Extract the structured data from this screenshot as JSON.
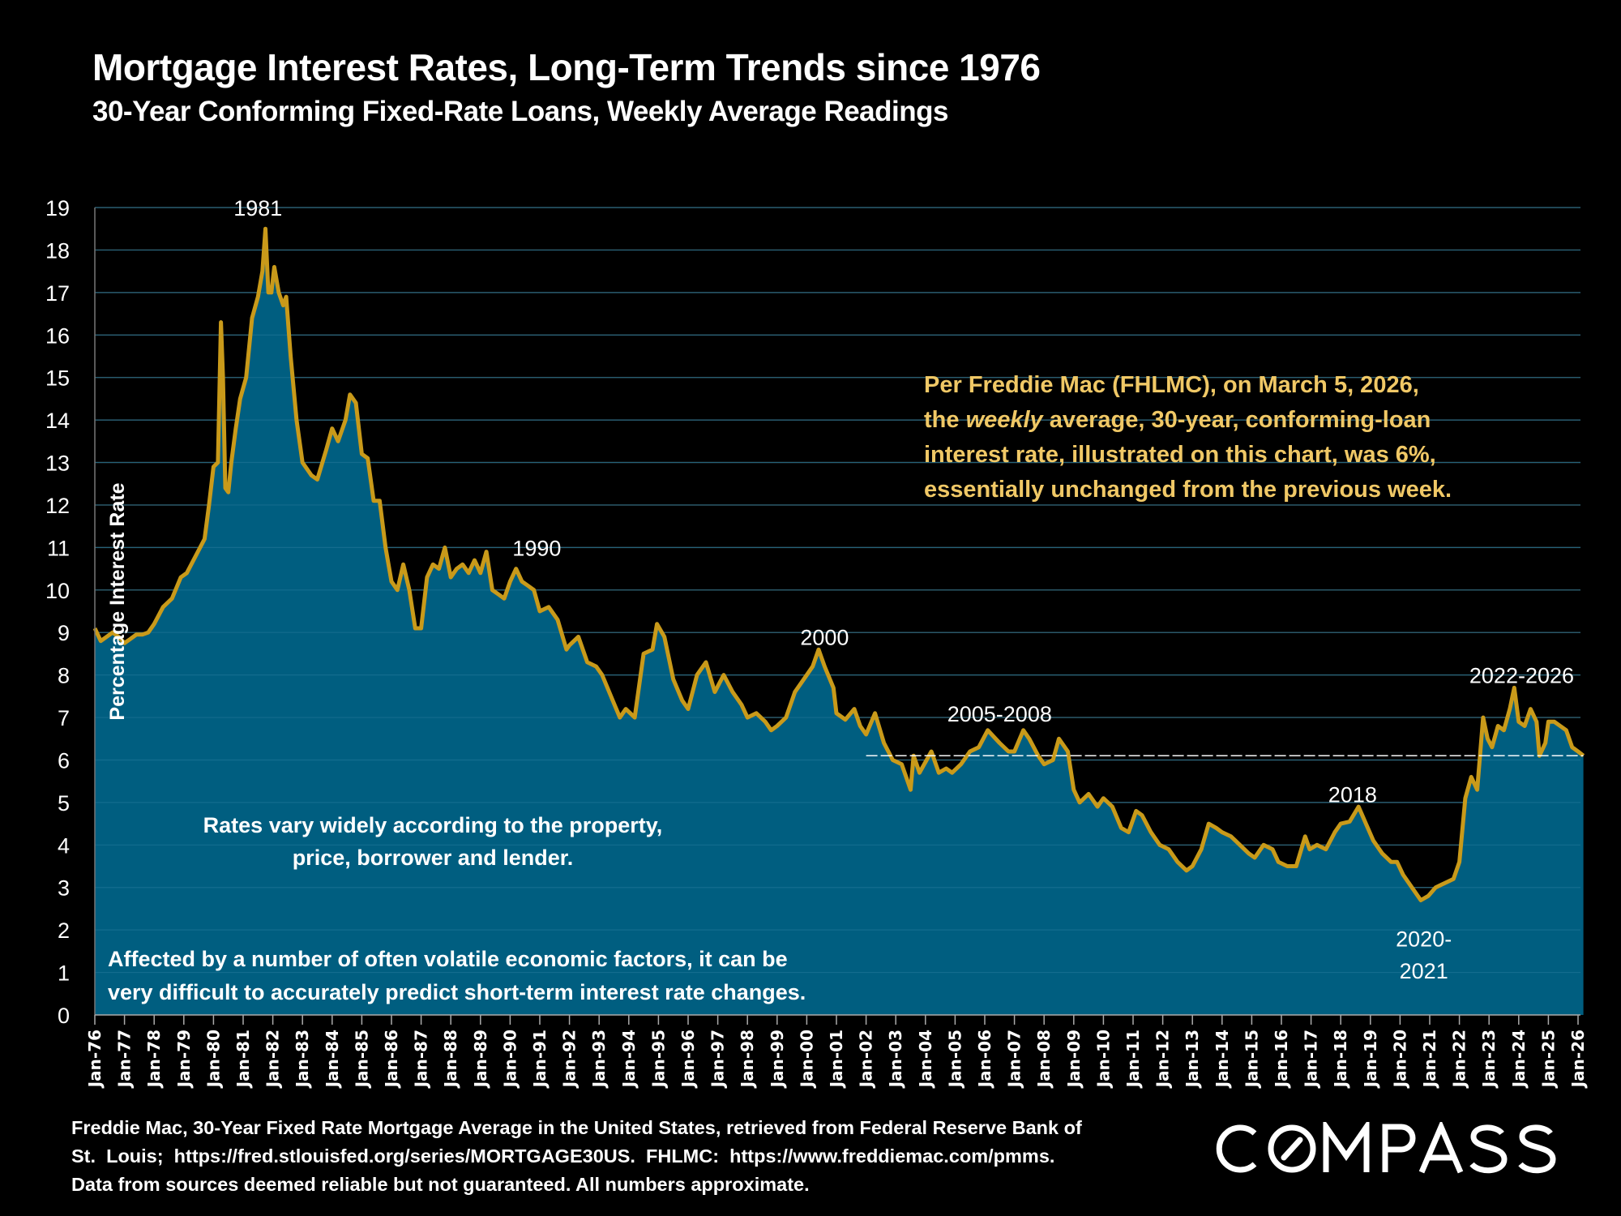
{
  "header": {
    "title": "Mortgage Interest Rates, Long-Term Trends since 1976",
    "subtitle": "30-Year Conforming Fixed-Rate Loans, Weekly Average Readings"
  },
  "callout": {
    "line1": "Per Freddie Mac (FHLMC), on March 5, 2026,",
    "line2_pre": "the ",
    "line2_em": "weekly",
    "line2_post": " average, 30-year, conforming-loan",
    "line3": "interest rate, illustrated on this chart, was 6%,",
    "line4": "essentially unchanged from the previous week."
  },
  "footnote": {
    "line1": "Freddie Mac, 30-Year Fixed Rate Mortgage Average in the United States, retrieved from Federal Reserve Bank of",
    "line2": "St.  Louis;  https://fred.stlouisfed.org/series/MORTGAGE30US.  FHLMC:  https://www.freddiemac.com/pmms.",
    "line3": "Data from sources deemed reliable but not guaranteed. All numbers approximate."
  },
  "logo": {
    "text": "COMPASS"
  },
  "colors": {
    "background": "#000000",
    "fill": "#005e80",
    "line": "#c99a1a",
    "callout_text": "#f0c866",
    "grid": "#3a3a3a",
    "reference_line": "#ffffff"
  },
  "chart_data": {
    "type": "area",
    "title": "Mortgage Interest Rates, Long-Term Trends since 1976",
    "subtitle": "30-Year Conforming Fixed-Rate Loans, Weekly Average Readings",
    "xlabel": "",
    "ylabel": "Percentage Interest  Rate",
    "ylim": [
      0,
      19
    ],
    "xlim": [
      1976,
      2026.2
    ],
    "yticks": [
      "0",
      "1",
      "2",
      "3",
      "4",
      "5",
      "6",
      "7",
      "8",
      "9",
      "10",
      "11",
      "12",
      "13",
      "14",
      "15",
      "16",
      "17",
      "18",
      "19"
    ],
    "xticks": [
      "Jan-76",
      "Jan-77",
      "Jan-78",
      "Jan-79",
      "Jan-80",
      "Jan-81",
      "Jan-82",
      "Jan-83",
      "Jan-84",
      "Jan-85",
      "Jan-86",
      "Jan-87",
      "Jan-88",
      "Jan-89",
      "Jan-90",
      "Jan-91",
      "Jan-92",
      "Jan-93",
      "Jan-94",
      "Jan-95",
      "Jan-96",
      "Jan-97",
      "Jan-98",
      "Jan-99",
      "Jan-00",
      "Jan-01",
      "Jan-02",
      "Jan-03",
      "Jan-04",
      "Jan-05",
      "Jan-06",
      "Jan-07",
      "Jan-08",
      "Jan-09",
      "Jan-10",
      "Jan-11",
      "Jan-12",
      "Jan-13",
      "Jan-14",
      "Jan-15",
      "Jan-16",
      "Jan-17",
      "Jan-18",
      "Jan-19",
      "Jan-20",
      "Jan-21",
      "Jan-22",
      "Jan-23",
      "Jan-24",
      "Jan-25",
      "Jan-26"
    ],
    "grid": true,
    "legend": "none",
    "series": [
      {
        "name": "30-Year Fixed Rate Mortgage Average (weekly)",
        "x": [
          1976.0,
          1976.2,
          1976.4,
          1976.6,
          1976.8,
          1977.0,
          1977.2,
          1977.4,
          1977.6,
          1977.8,
          1978.0,
          1978.3,
          1978.6,
          1978.9,
          1979.1,
          1979.4,
          1979.7,
          1979.85,
          1980.0,
          1980.15,
          1980.25,
          1980.32,
          1980.4,
          1980.5,
          1980.6,
          1980.75,
          1980.9,
          1981.1,
          1981.3,
          1981.5,
          1981.65,
          1981.75,
          1981.85,
          1981.95,
          1982.05,
          1982.2,
          1982.35,
          1982.45,
          1982.6,
          1982.8,
          1983.0,
          1983.3,
          1983.5,
          1983.8,
          1984.0,
          1984.2,
          1984.45,
          1984.6,
          1984.8,
          1985.0,
          1985.2,
          1985.4,
          1985.6,
          1985.8,
          1986.0,
          1986.2,
          1986.4,
          1986.6,
          1986.8,
          1987.0,
          1987.2,
          1987.4,
          1987.6,
          1987.8,
          1988.0,
          1988.2,
          1988.4,
          1988.6,
          1988.8,
          1989.0,
          1989.2,
          1989.4,
          1989.6,
          1989.8,
          1990.0,
          1990.2,
          1990.4,
          1990.6,
          1990.8,
          1991.0,
          1991.3,
          1991.6,
          1991.9,
          1992.0,
          1992.3,
          1992.6,
          1992.9,
          1993.1,
          1993.4,
          1993.7,
          1993.9,
          1994.2,
          1994.5,
          1994.8,
          1994.95,
          1995.2,
          1995.5,
          1995.8,
          1996.0,
          1996.3,
          1996.6,
          1996.9,
          1997.2,
          1997.5,
          1997.8,
          1998.0,
          1998.3,
          1998.6,
          1998.8,
          1999.0,
          1999.3,
          1999.6,
          1999.9,
          2000.2,
          2000.4,
          2000.6,
          2000.9,
          2001.0,
          2001.3,
          2001.6,
          2001.8,
          2002.0,
          2002.3,
          2002.6,
          2002.9,
          2003.2,
          2003.5,
          2003.6,
          2003.8,
          2004.2,
          2004.45,
          2004.7,
          2004.9,
          2005.2,
          2005.5,
          2005.8,
          2006.1,
          2006.5,
          2006.8,
          2007.0,
          2007.3,
          2007.5,
          2007.8,
          2008.0,
          2008.3,
          2008.5,
          2008.8,
          2009.0,
          2009.2,
          2009.5,
          2009.8,
          2010.0,
          2010.3,
          2010.6,
          2010.85,
          2011.1,
          2011.3,
          2011.6,
          2011.9,
          2012.2,
          2012.5,
          2012.8,
          2013.0,
          2013.3,
          2013.55,
          2013.8,
          2014.0,
          2014.3,
          2014.6,
          2014.9,
          2015.1,
          2015.4,
          2015.7,
          2015.9,
          2016.2,
          2016.5,
          2016.8,
          2016.95,
          2017.2,
          2017.5,
          2017.8,
          2018.0,
          2018.3,
          2018.6,
          2018.85,
          2019.1,
          2019.4,
          2019.7,
          2019.9,
          2020.1,
          2020.4,
          2020.7,
          2020.95,
          2021.2,
          2021.5,
          2021.8,
          2022.0,
          2022.2,
          2022.4,
          2022.6,
          2022.8,
          2022.95,
          2023.1,
          2023.3,
          2023.5,
          2023.7,
          2023.85,
          2024.0,
          2024.2,
          2024.4,
          2024.6,
          2024.7,
          2024.9,
          2025.0,
          2025.2,
          2025.4,
          2025.6,
          2025.8,
          2026.0,
          2026.18
        ],
        "y": [
          9.1,
          8.8,
          8.9,
          9.0,
          8.9,
          8.75,
          8.85,
          8.95,
          8.95,
          9.0,
          9.2,
          9.6,
          9.8,
          10.3,
          10.4,
          10.8,
          11.2,
          12.0,
          12.9,
          13.0,
          16.3,
          15.0,
          12.4,
          12.3,
          13.0,
          13.8,
          14.5,
          15.0,
          16.4,
          16.9,
          17.5,
          18.5,
          17.0,
          17.0,
          17.6,
          17.0,
          16.7,
          16.9,
          15.5,
          14.0,
          13.0,
          12.7,
          12.6,
          13.3,
          13.8,
          13.5,
          14.0,
          14.6,
          14.4,
          13.2,
          13.1,
          12.1,
          12.1,
          11.0,
          10.2,
          10.0,
          10.6,
          10.0,
          9.1,
          9.1,
          10.3,
          10.6,
          10.5,
          11.0,
          10.3,
          10.5,
          10.6,
          10.4,
          10.7,
          10.4,
          10.9,
          10.0,
          9.9,
          9.8,
          10.2,
          10.5,
          10.2,
          10.1,
          10.0,
          9.5,
          9.6,
          9.3,
          8.6,
          8.7,
          8.9,
          8.3,
          8.2,
          8.0,
          7.5,
          7.0,
          7.2,
          7.0,
          8.5,
          8.6,
          9.2,
          8.9,
          7.9,
          7.4,
          7.2,
          8.0,
          8.3,
          7.6,
          8.0,
          7.6,
          7.3,
          7.0,
          7.1,
          6.9,
          6.7,
          6.8,
          7.0,
          7.6,
          7.9,
          8.2,
          8.6,
          8.2,
          7.7,
          7.1,
          6.95,
          7.2,
          6.8,
          6.6,
          7.1,
          6.4,
          6.0,
          5.9,
          5.3,
          6.1,
          5.7,
          6.2,
          5.7,
          5.8,
          5.7,
          5.9,
          6.2,
          6.3,
          6.7,
          6.4,
          6.2,
          6.2,
          6.7,
          6.5,
          6.1,
          5.9,
          6.0,
          6.5,
          6.2,
          5.3,
          5.0,
          5.2,
          4.9,
          5.1,
          4.9,
          4.4,
          4.3,
          4.8,
          4.7,
          4.3,
          4.0,
          3.9,
          3.6,
          3.4,
          3.5,
          3.9,
          4.5,
          4.4,
          4.3,
          4.2,
          4.0,
          3.8,
          3.7,
          4.0,
          3.9,
          3.6,
          3.5,
          3.5,
          4.2,
          3.9,
          4.0,
          3.9,
          4.3,
          4.5,
          4.55,
          4.9,
          4.5,
          4.1,
          3.8,
          3.6,
          3.6,
          3.3,
          3.0,
          2.7,
          2.8,
          3.0,
          3.1,
          3.2,
          3.6,
          5.1,
          5.6,
          5.3,
          7.0,
          6.5,
          6.3,
          6.8,
          6.7,
          7.2,
          7.7,
          6.9,
          6.8,
          7.2,
          6.9,
          6.1,
          6.4,
          6.9,
          6.9,
          6.8,
          6.7,
          6.3,
          6.2,
          6.1
        ]
      }
    ],
    "reference_line": {
      "value": 6.1,
      "from": 2002.0,
      "to": 2026.18,
      "style": "dotted"
    },
    "annotations": [
      {
        "text": "1981",
        "x": 1981.5,
        "y": 19
      },
      {
        "text": "1990",
        "x": 1990.9,
        "y": 11
      },
      {
        "text": "2000",
        "x": 2000.6,
        "y": 8.9
      },
      {
        "text": "2005-2008",
        "x": 2006.5,
        "y": 7.1
      },
      {
        "text": "2018",
        "x": 2018.4,
        "y": 5.2
      },
      {
        "text": "2020-",
        "x": 2020.8,
        "y": 1.8
      },
      {
        "text": "2021",
        "x": 2020.8,
        "y": 1.05
      },
      {
        "text": "2022-2026",
        "x": 2024.1,
        "y": 8.0
      }
    ],
    "notes": [
      {
        "text": "Rates vary widely according to the property,"
      },
      {
        "text": "price, borrower and lender."
      },
      {
        "text": "Affected by a number of often volatile economic factors, it can be"
      },
      {
        "text": "very difficult to accurately predict short-term interest rate changes."
      }
    ]
  }
}
